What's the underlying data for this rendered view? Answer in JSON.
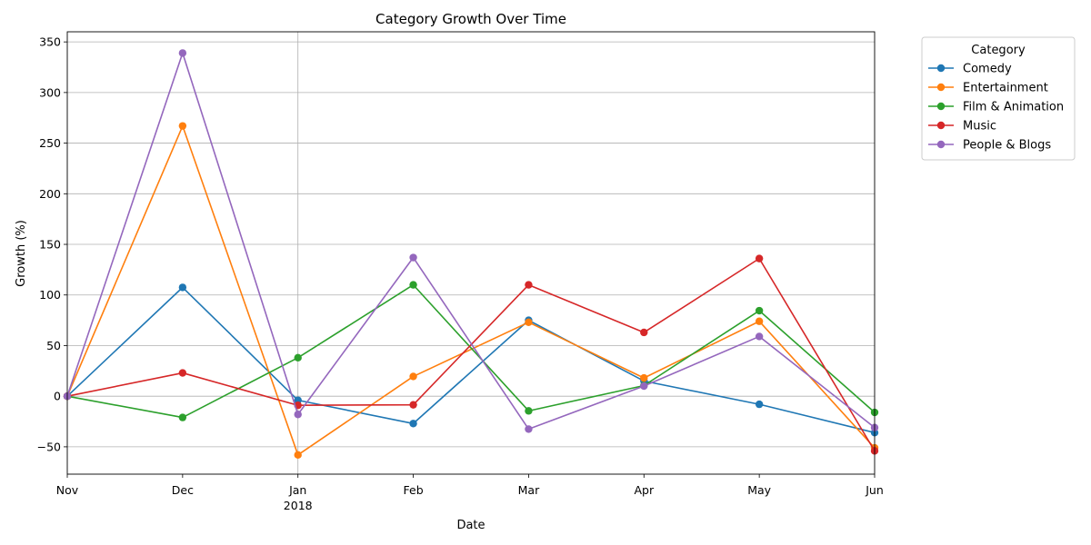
{
  "chart_data": {
    "type": "line",
    "title": "Category Growth Over Time",
    "xlabel": "Date",
    "ylabel": "Growth (%)",
    "x": [
      "2017-11",
      "2017-12",
      "2018-01",
      "2018-02",
      "2018-03",
      "2018-04",
      "2018-05",
      "2018-06"
    ],
    "x_tick_labels": [
      "Nov",
      "Dec",
      "Jan",
      "Feb",
      "Mar",
      "Apr",
      "May",
      "Jun"
    ],
    "x_year_label": "2018",
    "ylim": [
      -77,
      360
    ],
    "y_ticks": [
      -50,
      0,
      50,
      100,
      150,
      200,
      250,
      300,
      350
    ],
    "grid": true,
    "legend": {
      "title": "Category",
      "placement": "outside-top-right"
    },
    "series": [
      {
        "name": "Comedy",
        "color": "#1f77b4",
        "values": [
          0,
          107.5,
          -4,
          -27,
          75,
          15,
          -8,
          -36
        ]
      },
      {
        "name": "Entertainment",
        "color": "#ff7f0e",
        "values": [
          0,
          267,
          -58,
          19.5,
          73,
          18,
          74,
          -51
        ]
      },
      {
        "name": "Film & Animation",
        "color": "#2ca02c",
        "values": [
          0,
          -21,
          38,
          110,
          -14.5,
          10.5,
          84.5,
          -16
        ]
      },
      {
        "name": "Music",
        "color": "#d62728",
        "values": [
          0,
          23,
          -9,
          -8.5,
          110,
          63,
          136,
          -54
        ]
      },
      {
        "name": "People & Blogs",
        "color": "#9467bd",
        "values": [
          0,
          339,
          -18,
          137,
          -32.5,
          10,
          59,
          -31
        ]
      }
    ]
  }
}
